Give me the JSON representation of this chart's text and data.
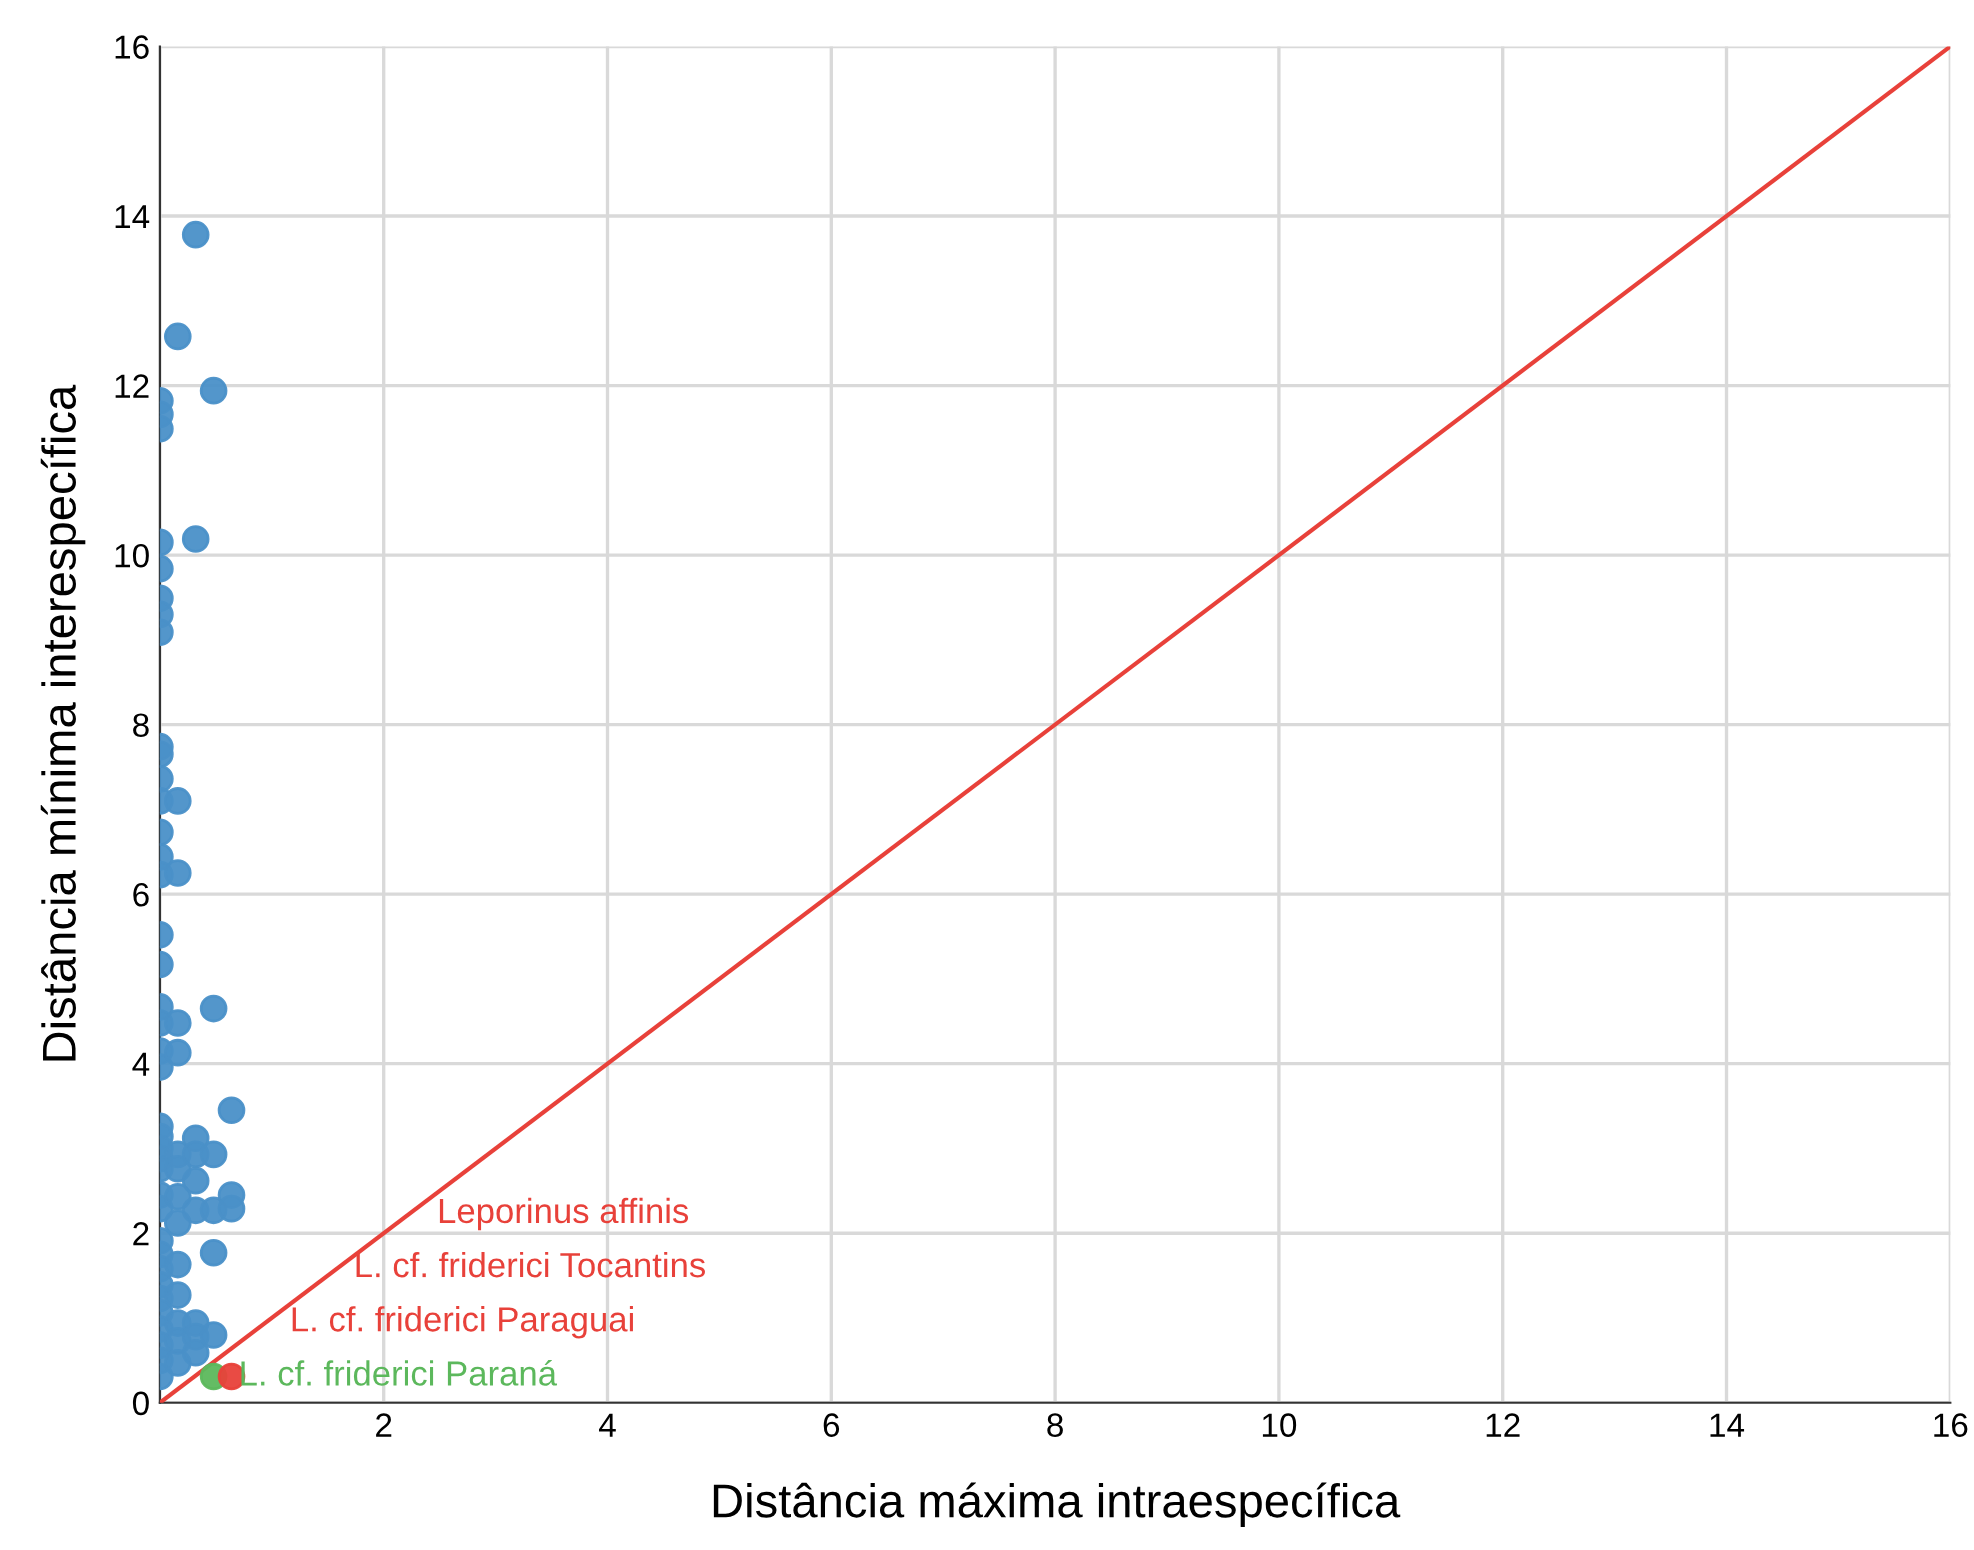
{
  "chart_data": {
    "type": "scatter",
    "xlabel": "Distância máxima intraespecífica",
    "ylabel": "Distância mínima interespecífica",
    "xlim": [
      0,
      16
    ],
    "ylim": [
      0,
      16
    ],
    "xticks": [
      {
        "value": 0,
        "label": null
      },
      2,
      4,
      6,
      8,
      10,
      12,
      14,
      16
    ],
    "yticks": [
      0,
      2,
      4,
      6,
      8,
      10,
      12,
      14,
      16
    ],
    "grid": true,
    "marker": "circle",
    "annotations": [
      "L. cf. friderici Paraguai",
      "L. cf. friderici Tocantins",
      "Leporinus affinis"
    ],
    "series": [
      {
        "color": "#4a90c8",
        "x": [
          0,
          0,
          0,
          0,
          0,
          0,
          0,
          0,
          0,
          0,
          0,
          0,
          0,
          0,
          0,
          0,
          0,
          0,
          0,
          0,
          0,
          0,
          0,
          0,
          0,
          0,
          0,
          0,
          0,
          0,
          0,
          0,
          0,
          0,
          0,
          0,
          0,
          0,
          0.16,
          0.16,
          0.16,
          0.16,
          0.16,
          0.16,
          0.16,
          0.16,
          0.16,
          0.16,
          0.16,
          0.16,
          0.16,
          0.16,
          0.32,
          0.32,
          0.32,
          0.32,
          0.32,
          0.32,
          0.32,
          0.32,
          0.32,
          0.48,
          0.48,
          0.48,
          0.48,
          0.48,
          0.48,
          0.64,
          0.64,
          0.64
        ],
        "values": [
          11.82,
          11.66,
          11.49,
          10.15,
          9.84,
          9.49,
          9.3,
          9.09,
          7.74,
          7.65,
          7.36,
          7.1,
          6.73,
          6.44,
          6.23,
          5.52,
          5.17,
          4.67,
          4.48,
          4.15,
          3.96,
          3.26,
          3.14,
          3.0,
          2.88,
          2.76,
          2.45,
          2.29,
          1.91,
          1.75,
          1.58,
          1.39,
          1.23,
          1.06,
          0.87,
          0.68,
          0.5,
          0.31,
          12.58,
          7.1,
          6.25,
          4.48,
          4.13,
          2.93,
          2.76,
          2.43,
          2.12,
          1.63,
          1.27,
          0.94,
          0.73,
          0.47,
          13.78,
          10.19,
          3.12,
          2.93,
          2.62,
          2.27,
          0.94,
          0.78,
          0.59,
          11.94,
          4.65,
          2.93,
          2.27,
          1.77,
          0.8,
          3.45,
          2.45,
          2.29
        ]
      },
      {
        "name": "L. cf. friderici Paraná",
        "color": "#5cb85c",
        "x": [
          0.48
        ],
        "values": [
          0.31
        ]
      },
      {
        "color": "#e8413a",
        "x": [
          0.64
        ],
        "values": [
          0.31
        ]
      },
      {
        "type": "line",
        "color": "#e8413a",
        "marker": "none",
        "x": [
          0,
          16
        ],
        "values": [
          0,
          16
        ]
      }
    ]
  }
}
